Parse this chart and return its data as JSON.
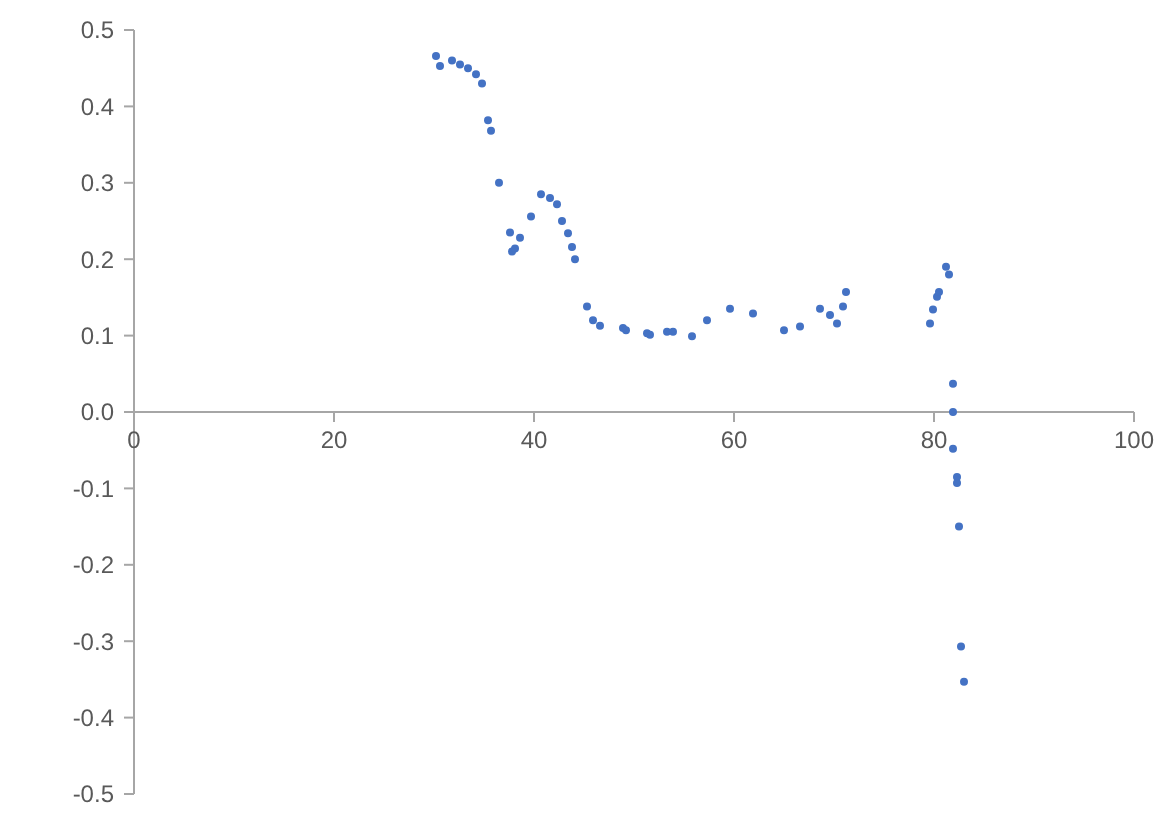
{
  "chart_data": {
    "type": "scatter",
    "marker": "circle",
    "grid": false,
    "xlim": [
      0,
      100
    ],
    "xticks": [
      0,
      20,
      40,
      60,
      80,
      100
    ],
    "ylim": [
      -0.5,
      0.5
    ],
    "yticks": [
      {
        "value": 0.5,
        "label": "0.5"
      },
      {
        "value": 0.4,
        "label": "0.4"
      },
      {
        "value": 0.3,
        "label": "0.3"
      },
      {
        "value": 0.2,
        "label": "0.2"
      },
      {
        "value": 0.1,
        "label": "0.1"
      },
      {
        "value": 0,
        "label": "0.0"
      },
      {
        "value": -0.1,
        "label": "-0.1"
      },
      {
        "value": -0.2,
        "label": "-0.2"
      },
      {
        "value": -0.3,
        "label": "-0.3"
      },
      {
        "value": -0.4,
        "label": "-0.4"
      },
      {
        "value": -0.5,
        "label": "-0.5"
      }
    ],
    "series": [
      {
        "color": "#4472c4",
        "x": [
          30.2,
          30.6,
          31.8,
          32.6,
          33.4,
          34.2,
          34.8,
          35.4,
          35.7,
          36.5,
          37.6,
          37.8,
          38.1,
          38.6,
          39.7,
          40.7,
          41.6,
          42.3,
          42.8,
          43.4,
          43.8,
          44.1,
          45.3,
          45.9,
          46.6,
          48.9,
          49.2,
          51.3,
          51.6,
          53.3,
          53.9,
          55.8,
          57.3,
          59.6,
          61.9,
          65,
          66.6,
          68.6,
          69.6,
          70.3,
          70.9,
          71.2,
          79.6,
          79.9,
          80.3,
          80.5,
          81.2,
          81.5,
          81.9,
          81.9,
          81.9,
          82.3,
          82.3,
          82.5,
          82.7,
          83
        ],
        "values": [
          0.466,
          0.453,
          0.46,
          0.455,
          0.45,
          0.442,
          0.43,
          0.382,
          0.368,
          0.3,
          0.235,
          0.21,
          0.214,
          0.228,
          0.256,
          0.285,
          0.28,
          0.272,
          0.25,
          0.234,
          0.216,
          0.2,
          0.138,
          0.12,
          0.113,
          0.11,
          0.107,
          0.103,
          0.101,
          0.105,
          0.105,
          0.099,
          0.12,
          0.135,
          0.129,
          0.107,
          0.112,
          0.135,
          0.127,
          0.116,
          0.138,
          0.157,
          0.116,
          0.134,
          0.151,
          0.157,
          0.19,
          0.18,
          0.037,
          0,
          -0.048,
          -0.085,
          -0.093,
          -0.15,
          -0.307,
          -0.353
        ]
      }
    ]
  }
}
